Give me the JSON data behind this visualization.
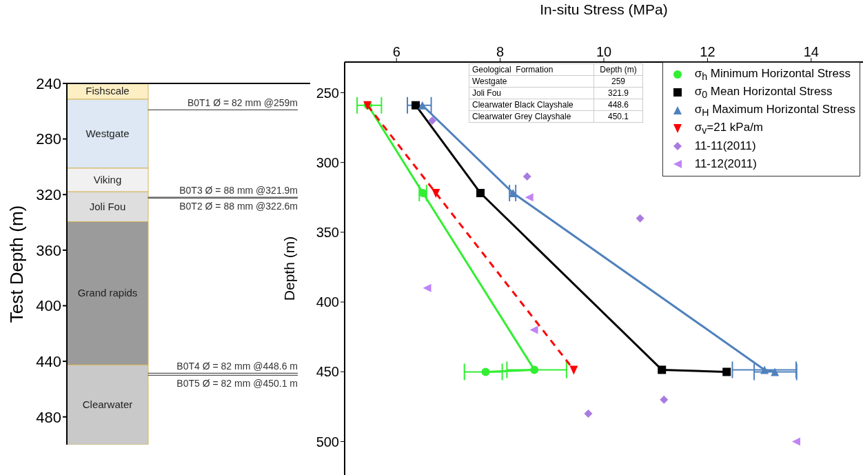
{
  "chart_data": [
    {
      "type": "bar",
      "ylabel": "Test Depth (m)",
      "categories": [
        null,
        null,
        null
      ],
      "ylim": [
        500,
        240
      ],
      "yticks": [
        240,
        280,
        320,
        360,
        400,
        440,
        480
      ],
      "tick_labels": "y",
      "series": [
        {
          "name": "Fishscale",
          "color": "#fdefc3",
          "base": [
            240,
            null,
            null
          ],
          "values": [
            11.4,
            null,
            null
          ]
        },
        {
          "name": "Westgate",
          "color": "#dde8f4",
          "base": [
            251.4,
            null,
            null
          ],
          "values": [
            49.6,
            null,
            null
          ]
        },
        {
          "name": "Viking",
          "color": "#f1f1f1",
          "base": [
            301,
            null,
            null
          ],
          "values": [
            17,
            null,
            null
          ]
        },
        {
          "name": "Joli Fou",
          "color": "#dedede",
          "base": [
            318,
            null,
            null
          ],
          "values": [
            21.5,
            null,
            null
          ]
        },
        {
          "name": "Grand rapids",
          "color": "#9b9b9b",
          "base": [
            339.5,
            null,
            null
          ],
          "values": [
            103.1,
            null,
            null
          ]
        },
        {
          "name": "Clearwater",
          "color": "#c9c9c9",
          "base": [
            442.6,
            null,
            null
          ],
          "values": [
            57.4,
            null,
            null
          ]
        }
      ],
      "ref_lines": [
        {
          "axis": "y",
          "value": 259,
          "label": "B0T1 Ø = 82 mm @259m",
          "color": "#555555"
        },
        {
          "axis": "y",
          "value": 321.9,
          "label": "B0T3 Ø = 88 mm @321.9m",
          "color": "#555555"
        },
        {
          "axis": "y",
          "value": 322.6,
          "label": "B0T2 Ø = 88 mm @322.6m",
          "color": "#555555"
        },
        {
          "axis": "y",
          "value": 448.6,
          "label": "B0T4 Ø = 82 mm @448.6 m",
          "color": "#555555"
        },
        {
          "axis": "y",
          "value": 450.1,
          "label": "B0T5 Ø = 82 mm @450.1 m",
          "color": "#555555"
        }
      ]
    },
    {
      "type": "line",
      "xlabel": "In-situ Stress (MPa)",
      "ylabel": "Depth (m)",
      "xlim": [
        5,
        15
      ],
      "xticks": [
        6,
        8,
        10,
        12,
        14
      ],
      "ylim": [
        524,
        228
      ],
      "yticks": [
        250,
        300,
        350,
        400,
        450,
        500
      ],
      "legend": "top right",
      "annotations": [
        "Geological  Formation",
        "Depth (m)",
        "Westgate",
        "259",
        "Joli Fou",
        "321.9",
        "Clearwater Black Clayshale",
        "448.6",
        "Clearwater Grey Clayshale",
        "450.1"
      ],
      "series": [
        {
          "name": "σ$_{h}$ Minimum Horizontal Stress",
          "type": "line",
          "color": "#33ee33",
          "marker": "circle",
          "line_style": "solid",
          "x": [
            5.45,
            6.51,
            8.66,
            7.72
          ],
          "values": [
            259,
            321.9,
            448.6,
            450.1
          ],
          "xerrors": [
            [
              5.24,
              5.71
            ],
            [
              6.44,
              6.58
            ],
            [
              8.13,
              9.28
            ],
            [
              7.31,
              8.04
            ]
          ]
        },
        {
          "name": "σ$_{0}$ Mean Horizontal Stress",
          "type": "line",
          "color": "#000000",
          "marker": "square",
          "line_style": "solid",
          "x": [
            6.37,
            7.62,
            11.12,
            12.37
          ],
          "values": [
            259,
            321.9,
            448.6,
            450.1
          ]
        },
        {
          "name": "σ$_{H}$ Maximum Horizontal Stress",
          "type": "line",
          "color": "#4f81bd",
          "marker": "triangle",
          "line_style": "solid",
          "x": [
            6.5,
            8.25,
            13.1,
            13.3
          ],
          "values": [
            259,
            321.9,
            448.6,
            450.1
          ],
          "xerrors": [
            [
              6.21,
              6.67
            ],
            [
              8.18,
              8.3
            ],
            [
              12.48,
              13.71
            ],
            [
              12.9,
              13.72
            ]
          ]
        },
        {
          "name": "σ$_{v}$=21 kPa/m",
          "type": "line",
          "color": "#ff0000",
          "marker": "triangle-down",
          "line_style": "dashed",
          "x": [
            5.44,
            6.76,
            9.42
          ],
          "values": [
            259,
            321.9,
            448.6
          ]
        },
        {
          "name": "11-11(2011)",
          "type": "scatter",
          "color": "#a97be0",
          "marker": "diamond",
          "x": [
            6.69,
            8.52,
            10.7,
            11.16,
            9.7
          ],
          "values": [
            270,
            310,
            340,
            470,
            480
          ]
        },
        {
          "name": "11-12(2011)",
          "type": "scatter",
          "color": "#c084f5",
          "marker": "triangle-left",
          "x": [
            8.56,
            6.59,
            8.65,
            13.71
          ],
          "values": [
            325,
            390,
            420,
            500
          ]
        }
      ]
    }
  ]
}
